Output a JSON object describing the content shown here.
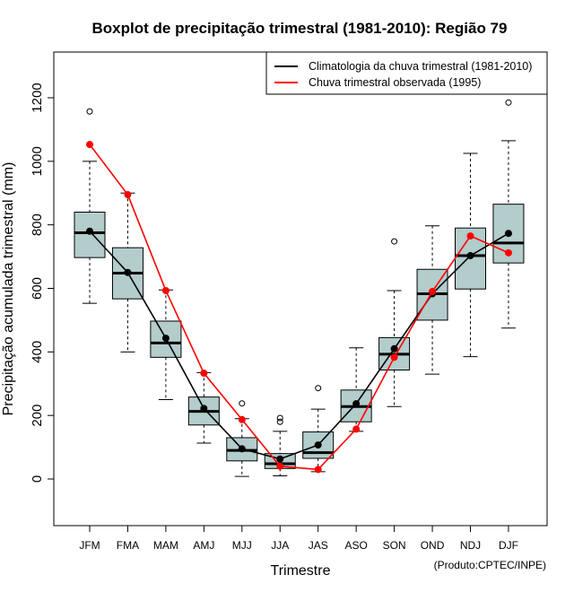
{
  "chart_data": {
    "type": "boxplot",
    "title": "Boxplot de precipitação trimestral (1981-2010): Região 79",
    "xlabel": "Trimestre",
    "ylabel": "Precipitação acumulada trimestral (mm)",
    "ylim": [
      -140,
      1330
    ],
    "yticks": [
      0,
      200,
      400,
      600,
      800,
      1000,
      1200
    ],
    "categories": [
      "JFM",
      "FMA",
      "MAM",
      "AMJ",
      "MJJ",
      "JJA",
      "JAS",
      "ASO",
      "SON",
      "OND",
      "NDJ",
      "DJF"
    ],
    "boxes": [
      {
        "whisker_low": 553,
        "q1": 697,
        "median": 775,
        "q3": 840,
        "whisker_high": 1000,
        "outliers": [
          1157
        ]
      },
      {
        "whisker_low": 400,
        "q1": 567,
        "median": 648,
        "q3": 728,
        "whisker_high": 900,
        "outliers": []
      },
      {
        "whisker_low": 250,
        "q1": 383,
        "median": 428,
        "q3": 497,
        "whisker_high": 595,
        "outliers": []
      },
      {
        "whisker_low": 113,
        "q1": 170,
        "median": 213,
        "q3": 258,
        "whisker_high": 335,
        "outliers": []
      },
      {
        "whisker_low": 8,
        "q1": 57,
        "median": 90,
        "q3": 130,
        "whisker_high": 190,
        "outliers": [
          238
        ]
      },
      {
        "whisker_low": 10,
        "q1": 33,
        "median": 48,
        "q3": 80,
        "whisker_high": 150,
        "outliers": [
          180,
          192
        ]
      },
      {
        "whisker_low": 23,
        "q1": 65,
        "median": 83,
        "q3": 148,
        "whisker_high": 220,
        "outliers": [
          286
        ]
      },
      {
        "whisker_low": 150,
        "q1": 180,
        "median": 228,
        "q3": 280,
        "whisker_high": 413,
        "outliers": []
      },
      {
        "whisker_low": 228,
        "q1": 343,
        "median": 393,
        "q3": 445,
        "whisker_high": 593,
        "outliers": [
          748
        ]
      },
      {
        "whisker_low": 330,
        "q1": 500,
        "median": 583,
        "q3": 660,
        "whisker_high": 797,
        "outliers": []
      },
      {
        "whisker_low": 385,
        "q1": 598,
        "median": 703,
        "q3": 790,
        "whisker_high": 1025,
        "outliers": []
      },
      {
        "whisker_low": 475,
        "q1": 680,
        "median": 743,
        "q3": 865,
        "whisker_high": 1065,
        "outliers": [
          1185
        ]
      }
    ],
    "series": [
      {
        "name": "Climatologia da chuva trimestral (1981-2010)",
        "color": "#000000",
        "values": [
          780,
          650,
          443,
          222,
          95,
          63,
          107,
          237,
          410,
          583,
          703,
          773
        ]
      },
      {
        "name": "Chuva trimestral observada (1995)",
        "color": "#ff0000",
        "values": [
          1053,
          895,
          593,
          333,
          187,
          40,
          30,
          157,
          383,
          590,
          765,
          712
        ]
      }
    ],
    "legend_position": "top-right",
    "box_fill": "#b3cccc",
    "footnote": "(Produto:CPTEC/INPE)"
  }
}
